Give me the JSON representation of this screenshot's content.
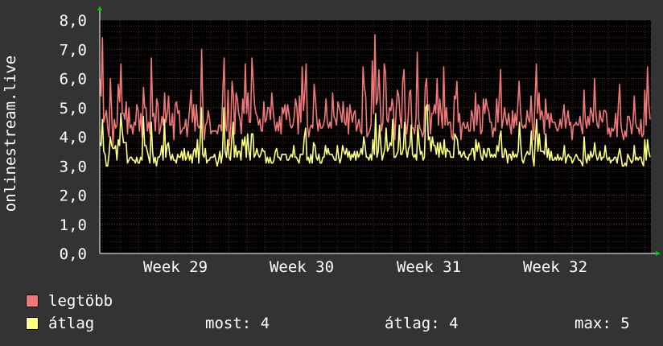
{
  "chart_data": {
    "type": "line",
    "ylabel": "onlinestream.live",
    "y_ticks": [
      "0,0",
      "1,0",
      "2,0",
      "3,0",
      "4,0",
      "5,0",
      "6,0",
      "7,0",
      "8,0"
    ],
    "ylim": [
      0,
      8
    ],
    "x_ticks": [
      "Week 29",
      "Week 30",
      "Week 31",
      "Week 32"
    ],
    "grid": true,
    "colors": {
      "background": "#000000",
      "panel": "#333333",
      "grid": "#4a2020",
      "axis": "#ffffff"
    },
    "series": [
      {
        "name": "legtöbb",
        "color": "#f07878",
        "values": [
          6.0,
          5.4,
          7.4,
          4.5,
          4.7,
          4.9,
          4.3,
          4.0,
          6.0,
          4.8,
          3.7,
          4.6,
          4.3,
          4.4,
          5.8,
          5.2,
          6.5,
          4.8,
          4.8,
          4.6,
          5.2,
          4.1,
          5.0,
          4.3,
          4.4,
          4.1,
          4.5,
          4.4,
          5.1,
          4.9,
          4.2,
          4.8,
          4.0,
          5.7,
          5.0,
          5.0,
          4.2,
          4.5,
          4.1,
          6.7,
          4.7,
          4.8,
          4.2,
          5.3,
          5.1,
          4.1,
          4.3,
          4.7,
          4.4,
          5.5,
          4.5,
          4.8,
          5.4,
          4.4,
          4.4,
          4.8,
          3.9,
          5.1,
          5.2,
          4.8,
          4.9,
          4.1,
          4.2,
          4.3,
          4.3,
          4.6,
          4.0,
          4.5,
          5.0,
          5.6,
          4.5,
          5.1,
          4.2,
          5.1,
          4.4,
          4.3,
          4.4,
          7.0,
          4.7,
          3.9,
          4.4,
          4.5,
          4.9,
          4.6,
          4.1,
          4.2,
          4.2,
          4.2,
          4.2,
          4.1,
          4.4,
          4.4,
          4.2,
          5.5,
          6.7,
          4.4,
          4.2,
          5.6,
          3.7,
          4.3,
          5.9,
          5.4,
          4.1,
          5.5,
          5.3,
          4.8,
          4.6,
          4.1,
          5.3,
          4.8,
          6.5,
          4.8,
          5.5,
          4.5,
          4.5,
          6.7,
          5.9,
          5.1,
          4.8,
          4.7,
          4.4,
          4.6,
          4.2,
          4.2,
          5.2,
          4.5,
          4.6,
          5.0,
          5.0,
          4.6,
          5.5,
          4.9,
          4.5,
          4.2,
          4.5,
          4.2,
          4.7,
          4.1,
          5.0,
          4.8,
          5.1,
          4.6,
          5.1,
          4.8,
          4.4,
          4.3,
          4.4,
          4.7,
          5.3,
          5.0,
          4.1,
          5.4,
          4.5,
          6.4,
          4.9,
          5.6,
          6.5,
          4.4,
          4.0,
          4.3,
          4.4,
          4.3,
          5.8,
          5.3,
          4.6,
          4.2,
          4.6,
          4.3,
          4.3,
          4.4,
          4.6,
          5.3,
          4.5,
          4.3,
          4.5,
          4.3,
          5.5,
          4.7,
          4.6,
          4.4,
          5.2,
          5.0,
          4.8,
          4.5,
          5.2,
          4.5,
          4.4,
          5.0,
          4.1,
          5.1,
          4.8,
          4.5,
          4.8,
          4.9,
          4.2,
          4.4,
          4.6,
          4.2,
          4.1,
          6.4,
          5.7,
          5.4,
          4.0,
          4.1,
          4.2,
          4.4,
          6.6,
          4.8,
          7.5,
          5.1,
          5.3,
          6.3,
          5.1,
          4.2,
          4.5,
          6.5,
          6.2,
          4.6,
          4.5,
          5.0,
          4.9,
          5.3,
          4.9,
          3.9,
          4.9,
          5.6,
          5.4,
          4.7,
          4.3,
          5.9,
          6.3,
          4.5,
          4.1,
          4.6,
          5.5,
          5.6,
          4.3,
          4.3,
          4.1,
          4.6,
          6.9,
          4.6,
          4.3,
          4.2,
          4.0,
          4.2,
          5.7,
          6.0,
          4.9,
          5.1,
          4.1,
          4.8,
          4.8,
          5.1,
          4.8,
          6.0,
          4.4,
          5.3,
          4.8,
          4.3,
          6.4,
          4.4,
          5.0,
          4.4,
          4.5,
          4.5,
          4.0,
          3.9,
          5.4,
          5.3,
          5.9,
          4.5,
          4.8,
          3.9,
          4.4,
          4.5,
          4.3,
          4.3,
          4.5,
          4.2,
          4.2,
          4.9,
          4.7,
          4.2,
          5.5,
          4.4,
          5.1,
          5.0,
          4.1,
          4.2,
          5.3,
          4.8,
          5.3,
          5.0,
          4.9,
          4.5,
          4.5,
          4.0,
          4.3,
          4.2,
          5.3,
          4.5,
          5.4,
          6.3,
          4.3,
          4.6,
          5.0,
          4.6,
          4.4,
          4.8,
          4.4,
          4.1,
          4.9,
          4.3,
          4.8,
          4.4,
          5.1,
          5.9,
          4.9,
          4.4,
          4.3,
          4.4,
          4.3,
          4.9,
          4.6,
          4.5,
          5.4,
          4.4,
          3.9,
          5.3,
          6.5,
          4.8,
          5.5,
          4.6,
          4.9,
          4.7,
          4.1,
          5.3,
          4.6,
          4.8,
          4.3,
          4.8,
          4.5,
          4.5,
          4.5,
          4.3,
          4.2,
          4.3,
          4.6,
          4.3,
          4.7,
          5.1,
          4.3,
          4.6,
          4.9,
          4.4,
          4.5,
          3.9,
          4.4,
          4.4,
          4.5,
          4.4,
          4.4,
          4.7,
          4.3,
          4.1,
          5.6,
          4.6,
          4.3,
          4.7,
          4.4,
          5.0,
          4.8,
          4.5,
          6.0,
          4.8,
          4.4,
          4.3,
          4.9,
          4.6,
          4.5,
          4.9,
          4.9,
          4.8,
          4.1,
          4.3,
          4.0,
          4.3,
          4.2,
          4.3,
          4.8,
          4.0,
          5.1,
          5.8,
          4.4,
          4.1,
          3.9,
          4.2,
          4.0,
          4.7,
          4.7,
          4.5,
          4.1,
          4.4,
          5.4,
          4.5,
          4.3,
          4.3,
          4.1,
          4.6,
          4.0,
          4.1,
          5.6,
          4.4,
          6.4,
          5.1,
          4.6
        ]
      },
      {
        "name": "átlag",
        "color": "#ffff80",
        "values": [
          3.8,
          3.7,
          4.6,
          3.5,
          3.4,
          3.0,
          3.0,
          3.4,
          4.0,
          3.7,
          3.6,
          3.6,
          3.7,
          3.2,
          3.9,
          3.7,
          4.8,
          4.2,
          3.8,
          3.8,
          3.8,
          3.1,
          3.2,
          3.3,
          3.3,
          3.2,
          3.2,
          3.1,
          3.3,
          3.1,
          3.1,
          3.3,
          3.2,
          4.7,
          3.7,
          3.7,
          3.5,
          3.3,
          3.1,
          4.5,
          3.5,
          3.1,
          3.3,
          3.0,
          3.3,
          3.3,
          3.4,
          3.7,
          3.2,
          4.6,
          3.3,
          3.7,
          3.8,
          3.4,
          3.2,
          3.4,
          3.2,
          3.2,
          3.1,
          3.4,
          3.3,
          3.3,
          3.5,
          3.2,
          3.6,
          3.2,
          3.3,
          3.5,
          3.2,
          3.4,
          3.1,
          3.5,
          3.6,
          3.3,
          3.9,
          3.1,
          3.8,
          5.0,
          3.4,
          3.3,
          3.6,
          3.1,
          3.2,
          3.2,
          3.3,
          3.3,
          3.3,
          3.4,
          3.2,
          3.0,
          3.2,
          3.5,
          3.1,
          3.4,
          5.0,
          3.5,
          3.3,
          3.9,
          3.3,
          3.2,
          3.9,
          4.5,
          3.3,
          3.7,
          3.3,
          3.5,
          3.5,
          3.2,
          3.9,
          3.7,
          4.0,
          3.3,
          4.1,
          3.5,
          3.2,
          4.1,
          4.1,
          3.3,
          3.4,
          3.6,
          3.4,
          3.3,
          3.4,
          3.6,
          3.5,
          3.5,
          3.1,
          3.3,
          3.1,
          3.3,
          3.1,
          3.1,
          3.2,
          3.5,
          3.6,
          3.3,
          3.3,
          3.2,
          3.4,
          3.4,
          3.4,
          3.4,
          3.2,
          3.2,
          3.3,
          3.4,
          3.3,
          3.7,
          3.3,
          3.3,
          3.2,
          3.1,
          3.4,
          3.4,
          3.4,
          4.0,
          4.3,
          3.2,
          3.3,
          3.1,
          3.4,
          3.1,
          3.8,
          3.7,
          3.3,
          3.2,
          3.4,
          3.1,
          3.1,
          3.3,
          3.3,
          3.7,
          3.4,
          3.6,
          3.4,
          3.4,
          3.4,
          3.3,
          3.2,
          3.2,
          3.7,
          3.3,
          3.1,
          3.3,
          3.7,
          3.5,
          3.4,
          3.6,
          3.3,
          3.5,
          3.2,
          3.4,
          3.3,
          3.5,
          3.2,
          3.5,
          3.3,
          3.4,
          3.6,
          3.4,
          4.0,
          3.7,
          3.3,
          3.3,
          3.2,
          3.4,
          3.2,
          3.9,
          3.4,
          4.8,
          3.3,
          3.5,
          4.4,
          3.7,
          3.2,
          3.4,
          3.6,
          4.3,
          3.5,
          3.6,
          3.8,
          3.7,
          4.6,
          3.3,
          3.3,
          3.4,
          3.5,
          4.4,
          3.4,
          3.4,
          3.6,
          4.5,
          3.6,
          3.3,
          3.6,
          3.7,
          4.4,
          3.4,
          3.3,
          3.4,
          3.2,
          4.4,
          3.8,
          3.4,
          3.5,
          3.2,
          3.3,
          5.0,
          5.1,
          3.9,
          4.0,
          3.5,
          4.0,
          3.7,
          3.7,
          3.4,
          3.8,
          3.3,
          3.8,
          3.5,
          3.4,
          3.9,
          3.3,
          3.6,
          3.5,
          3.5,
          3.3,
          3.3,
          3.3,
          4.1,
          4.0,
          3.9,
          3.4,
          3.5,
          3.3,
          3.4,
          3.5,
          3.3,
          3.3,
          3.2,
          3.4,
          3.4,
          3.6,
          3.6,
          3.2,
          3.9,
          3.5,
          3.8,
          3.6,
          3.3,
          3.2,
          3.6,
          3.4,
          3.3,
          3.6,
          3.6,
          3.3,
          3.4,
          3.3,
          3.4,
          3.3,
          3.7,
          3.5,
          4.0,
          4.2,
          3.3,
          3.3,
          3.6,
          3.5,
          3.1,
          3.4,
          3.4,
          3.2,
          3.5,
          3.3,
          3.4,
          3.3,
          3.5,
          4.5,
          3.7,
          3.2,
          3.1,
          3.3,
          3.4,
          3.5,
          3.4,
          3.4,
          4.2,
          3.3,
          3.0,
          3.9,
          4.6,
          3.5,
          4.1,
          3.5,
          3.5,
          3.5,
          3.4,
          4.1,
          3.3,
          3.6,
          3.2,
          3.5,
          3.2,
          3.2,
          3.3,
          3.2,
          3.4,
          3.2,
          3.3,
          3.2,
          3.3,
          3.7,
          3.1,
          3.3,
          3.4,
          3.3,
          3.3,
          3.1,
          3.2,
          3.3,
          3.4,
          3.3,
          3.2,
          3.2,
          3.1,
          3.0,
          4.0,
          3.3,
          3.1,
          3.4,
          3.2,
          3.5,
          3.3,
          3.4,
          3.8,
          3.4,
          3.2,
          3.3,
          3.5,
          3.2,
          3.3,
          3.3,
          3.7,
          3.3,
          3.2,
          3.3,
          3.1,
          3.2,
          3.2,
          3.3,
          3.3,
          3.1,
          3.4,
          3.6,
          3.3,
          3.0,
          3.0,
          3.1,
          3.0,
          3.4,
          3.3,
          3.2,
          3.1,
          3.2,
          3.7,
          3.2,
          3.3,
          3.2,
          3.3,
          3.3,
          3.1,
          3.0,
          3.9,
          3.2,
          3.9,
          3.5,
          3.3
        ]
      }
    ]
  },
  "legend": [
    {
      "label": "legtöbb",
      "color": "#f07878"
    },
    {
      "label": "átlag",
      "color": "#ffff80"
    }
  ],
  "stats": {
    "current": "most: 4",
    "average": "átlag: 4",
    "max": "max: 5"
  }
}
